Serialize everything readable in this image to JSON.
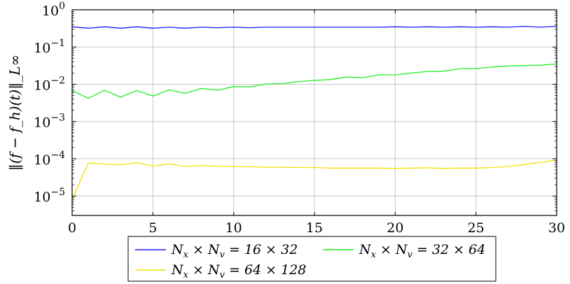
{
  "chart_data": {
    "type": "line",
    "yscale": "log",
    "ylabel": "‖(f − f_h)(t)‖_L∞",
    "xlabel": "",
    "xlim": [
      0,
      30
    ],
    "ylim": [
      3e-06,
      1
    ],
    "grid": true,
    "legend_position": "bottom-center",
    "x_ticks": [
      "0",
      "5",
      "10",
      "15",
      "20",
      "25",
      "30"
    ],
    "y_ticks": [
      {
        "base": "10",
        "exp": "0"
      },
      {
        "base": "10",
        "exp": "−1"
      },
      {
        "base": "10",
        "exp": "−2"
      },
      {
        "base": "10",
        "exp": "−3"
      },
      {
        "base": "10",
        "exp": "−4"
      },
      {
        "base": "10",
        "exp": "−5"
      }
    ],
    "x": [
      0,
      1,
      2,
      3,
      4,
      5,
      6,
      7,
      8,
      9,
      10,
      11,
      12,
      13,
      14,
      15,
      16,
      17,
      18,
      19,
      20,
      21,
      22,
      23,
      24,
      25,
      26,
      27,
      28,
      29,
      30
    ],
    "series": [
      {
        "name": "N_x × N_v = 16 × 32",
        "color": "#1a1aff",
        "values": [
          0.35,
          0.32,
          0.35,
          0.32,
          0.35,
          0.32,
          0.34,
          0.32,
          0.34,
          0.33,
          0.34,
          0.33,
          0.34,
          0.34,
          0.34,
          0.34,
          0.34,
          0.34,
          0.34,
          0.34,
          0.35,
          0.34,
          0.35,
          0.34,
          0.35,
          0.34,
          0.35,
          0.34,
          0.36,
          0.34,
          0.36
        ]
      },
      {
        "name": "N_x × N_v = 32 × 64",
        "color": "#22ee22",
        "values": [
          0.0068,
          0.0042,
          0.0069,
          0.0045,
          0.0068,
          0.0048,
          0.0071,
          0.0057,
          0.0077,
          0.0069,
          0.0087,
          0.0085,
          0.0102,
          0.0104,
          0.0118,
          0.0127,
          0.0134,
          0.0156,
          0.015,
          0.018,
          0.0178,
          0.02,
          0.022,
          0.0224,
          0.0263,
          0.0264,
          0.029,
          0.031,
          0.032,
          0.0325,
          0.035
        ]
      },
      {
        "name": "N_x × N_v = 64 × 128",
        "color": "#f2e200",
        "values": [
          8.2e-06,
          7.7e-05,
          7.2e-05,
          6.9e-05,
          7.9e-05,
          6.3e-05,
          7.3e-05,
          6.2e-05,
          6.6e-05,
          6.2e-05,
          6.2e-05,
          6.1e-05,
          5.9e-05,
          5.9e-05,
          5.8e-05,
          5.8e-05,
          5.6e-05,
          5.6e-05,
          5.6e-05,
          5.6e-05,
          5.5e-05,
          5.6e-05,
          5.7e-05,
          5.5e-05,
          5.6e-05,
          5.6e-05,
          5.8e-05,
          6.2e-05,
          7e-05,
          8e-05,
          9.3e-05
        ]
      }
    ],
    "legend": [
      {
        "pre": "N",
        "sub1": "x",
        "mid": " × N",
        "sub2": "v",
        "post": " = 16 × 32",
        "color": "#1a1aff"
      },
      {
        "pre": "N",
        "sub1": "x",
        "mid": " × N",
        "sub2": "v",
        "post": " = 32 × 64",
        "color": "#22ee22"
      },
      {
        "pre": "N",
        "sub1": "x",
        "mid": " × N",
        "sub2": "v",
        "post": " = 64 × 128",
        "color": "#f2e200"
      }
    ]
  }
}
